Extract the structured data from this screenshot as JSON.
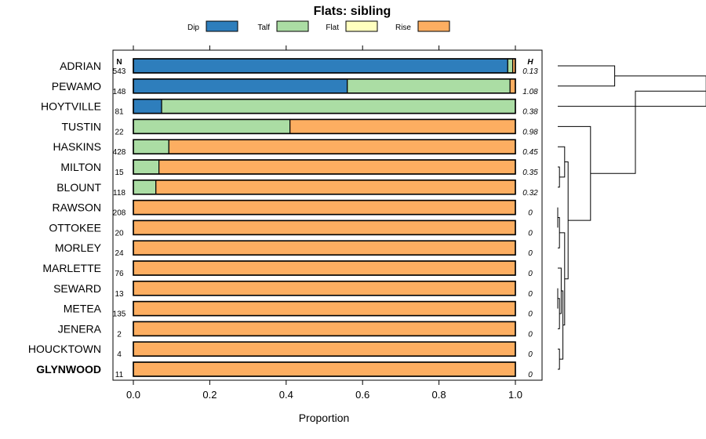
{
  "chart_data": {
    "type": "bar",
    "orientation": "horizontal",
    "stacked": true,
    "title": "Flats: sibling",
    "xlabel": "Proportion",
    "ylabel": "",
    "xlim": [
      0,
      1
    ],
    "x_ticks": [
      "0.0",
      "0.2",
      "0.4",
      "0.6",
      "0.8",
      "1.0"
    ],
    "legend": {
      "placement": "top",
      "entries": [
        {
          "name": "Dip",
          "color": "#2E7EBC"
        },
        {
          "name": "Talf",
          "color": "#ABDDA4"
        },
        {
          "name": "Flat",
          "color": "#FFFFBF"
        },
        {
          "name": "Rise",
          "color": "#FDAE61"
        }
      ]
    },
    "n_header": "N",
    "h_header": "H",
    "categories": [
      "ADRIAN",
      "PEWAMO",
      "HOYTVILLE",
      "TUSTIN",
      "HASKINS",
      "MILTON",
      "BLOUNT",
      "RAWSON",
      "OTTOKEE",
      "MORLEY",
      "MARLETTE",
      "SEWARD",
      "METEA",
      "JENERA",
      "HOUCKTOWN",
      "GLYNWOOD"
    ],
    "highlighted": "GLYNWOOD",
    "n": [
      "543",
      "148",
      "81",
      "22",
      "428",
      "15",
      "118",
      "208",
      "20",
      "24",
      "76",
      "13",
      "135",
      "2",
      "4",
      "11"
    ],
    "h": [
      "0.13",
      "1.08",
      "0.38",
      "0.98",
      "0.45",
      "0.35",
      "0.32",
      "0",
      "0",
      "0",
      "0",
      "0",
      "0",
      "0",
      "0",
      "0"
    ],
    "series": [
      {
        "name": "Dip",
        "values": [
          0.98,
          0.56,
          0.074,
          0,
          0,
          0,
          0,
          0,
          0,
          0,
          0,
          0,
          0,
          0,
          0,
          0
        ]
      },
      {
        "name": "Talf",
        "values": [
          0.013,
          0.426,
          0.926,
          0.41,
          0.093,
          0.067,
          0.059,
          0,
          0,
          0,
          0,
          0,
          0,
          0,
          0,
          0
        ]
      },
      {
        "name": "Flat",
        "values": [
          0,
          0,
          0,
          0,
          0,
          0,
          0,
          0,
          0,
          0,
          0,
          0,
          0,
          0,
          0,
          0
        ]
      },
      {
        "name": "Rise",
        "values": [
          0.007,
          0.014,
          0,
          0.59,
          0.907,
          0.933,
          0.941,
          1,
          1,
          1,
          1,
          1,
          1,
          1,
          1,
          1
        ]
      }
    ],
    "dendrogram": {
      "description": "hierarchical clustering of rows",
      "merges": [
        {
          "a": "ADRIAN",
          "b": "PEWAMO",
          "height": 0.33
        },
        {
          "a": "ADRIAN+PEWAMO",
          "b": "HOYTVILLE",
          "height": 0.86
        },
        {
          "a": "MILTON",
          "b": "BLOUNT",
          "height": 0.01
        },
        {
          "a": "HASKINS",
          "b": "MILTON+BLOUNT",
          "height": 0.04
        },
        {
          "a": "RAWSON",
          "b": "OTTOKEE",
          "height": 0.0
        },
        {
          "a": "RAWSON+OTTOKEE",
          "b": "MORLEY",
          "height": 0.01
        },
        {
          "a": "SEWARD",
          "b": "METEA",
          "height": 0.0
        },
        {
          "a": "SEWARD+METEA",
          "b": "JENERA",
          "height": 0.01
        },
        {
          "a": "MARLETTE",
          "b": "SEWARD+METEA+JENERA",
          "height": 0.02
        },
        {
          "a": "HOUCKTOWN",
          "b": "GLYNWOOD",
          "height": 0.01
        },
        {
          "a": "MARLETTE+SEWARD+METEA+JENERA",
          "b": "HOUCKTOWN+GLYNWOOD",
          "height": 0.03
        },
        {
          "a": "RAWSON+OTTOKEE+MORLEY",
          "b": "MARLETTE..GLYNWOOD",
          "height": 0.04
        },
        {
          "a": "HASKINS+MILTON+BLOUNT",
          "b": "RAWSON..GLYNWOOD",
          "height": 0.06
        },
        {
          "a": "HASKINS..GLYNWOOD",
          "b": "TUSTIN",
          "height": 0.19
        },
        {
          "a": "ADRIAN+PEWAMO+HOYTVILLE",
          "b": "TUSTIN+HASKINS..GLYNWOOD",
          "height": 0.45
        }
      ]
    }
  }
}
